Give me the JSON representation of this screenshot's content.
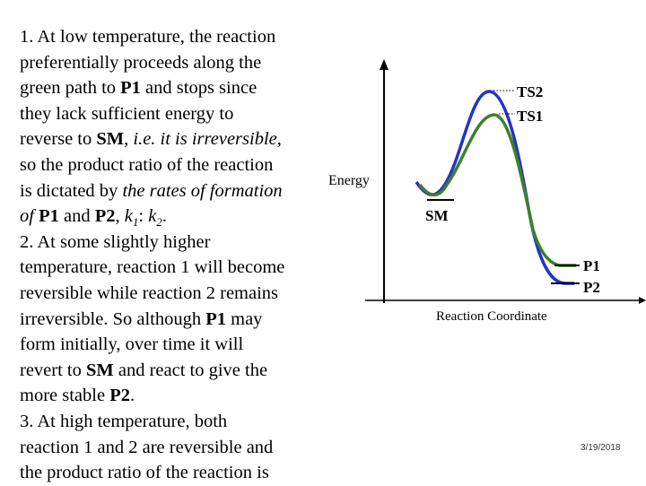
{
  "text_lines": [
    {
      "runs": [
        {
          "t": "1. At low temperature, the reaction"
        }
      ]
    },
    {
      "runs": [
        {
          "t": "preferentially proceeds along the"
        }
      ]
    },
    {
      "runs": [
        {
          "t": "green path to "
        },
        {
          "t": "P1",
          "b": true
        },
        {
          "t": " and stops since"
        }
      ]
    },
    {
      "runs": [
        {
          "t": "they lack sufficient energy to"
        }
      ]
    },
    {
      "runs": [
        {
          "t": "reverse to "
        },
        {
          "t": "SM",
          "b": true
        },
        {
          "t": ", "
        },
        {
          "t": "i.e. it is irreversible",
          "i": true
        },
        {
          "t": ","
        }
      ]
    },
    {
      "runs": [
        {
          "t": "so the product ratio of the reaction"
        }
      ]
    },
    {
      "runs": [
        {
          "t": "is dictated by "
        },
        {
          "t": "the rates of formation",
          "i": true
        }
      ]
    },
    {
      "runs": [
        {
          "t": "of ",
          "i": true
        },
        {
          "t": "P1",
          "b": true
        },
        {
          "t": " and "
        },
        {
          "t": "P2",
          "b": true
        },
        {
          "t": ", "
        },
        {
          "t": "k",
          "i": true
        },
        {
          "t": "1",
          "i": true,
          "sub": true
        },
        {
          "t": ": "
        },
        {
          "t": "k",
          "i": true
        },
        {
          "t": "2",
          "i": true,
          "sub": true
        },
        {
          "t": "."
        }
      ]
    },
    {
      "runs": [
        {
          "t": "2. At some slightly higher"
        }
      ]
    },
    {
      "runs": [
        {
          "t": "temperature, reaction 1 will become"
        }
      ]
    },
    {
      "runs": [
        {
          "t": "reversible while reaction 2 remains"
        }
      ]
    },
    {
      "runs": [
        {
          "t": "irreversible. So although "
        },
        {
          "t": "P1",
          "b": true
        },
        {
          "t": " may"
        }
      ]
    },
    {
      "runs": [
        {
          "t": "form initially, over time it will"
        }
      ]
    },
    {
      "runs": [
        {
          "t": "revert to "
        },
        {
          "t": "SM",
          "b": true
        },
        {
          "t": " and react to give the"
        }
      ]
    },
    {
      "runs": [
        {
          "t": "more stable "
        },
        {
          "t": "P2",
          "b": true
        },
        {
          "t": "."
        }
      ]
    },
    {
      "runs": [
        {
          "t": "3. At high temperature, both"
        }
      ]
    },
    {
      "runs": [
        {
          "t": "reaction 1 and 2 are reversible and"
        }
      ]
    },
    {
      "runs": [
        {
          "t": "the product ratio of the reaction is"
        }
      ]
    }
  ],
  "diagram": {
    "y_axis_label": "Energy",
    "x_axis_label": "Reaction Coordinate",
    "labels": {
      "ts2": "TS2",
      "ts1": "TS1",
      "sm": "SM",
      "p1": "P1",
      "p2": "P2"
    },
    "colors": {
      "path1": "#3f7f2a",
      "path2": "#2233cc",
      "axis": "#000000"
    }
  },
  "footer": {
    "date": "3/19/2018"
  }
}
